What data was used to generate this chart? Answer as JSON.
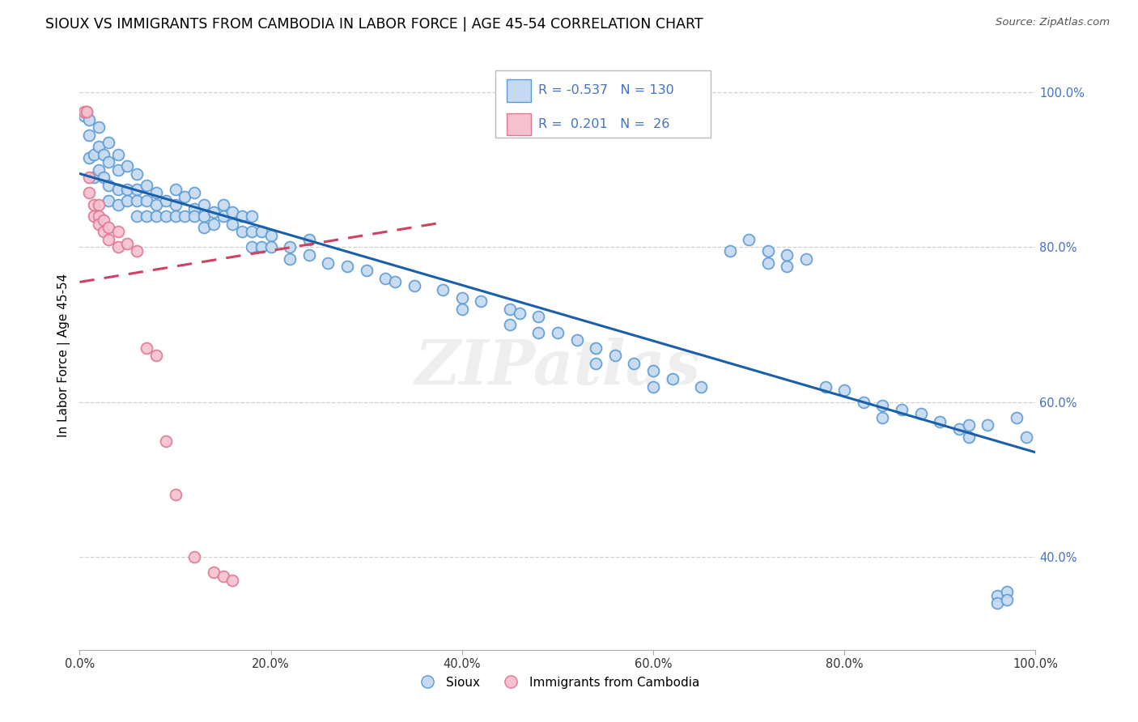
{
  "title": "SIOUX VS IMMIGRANTS FROM CAMBODIA IN LABOR FORCE | AGE 45-54 CORRELATION CHART",
  "source": "Source: ZipAtlas.com",
  "ylabel": "In Labor Force | Age 45-54",
  "xmin": 0.0,
  "xmax": 1.0,
  "ymin": 0.28,
  "ymax": 1.04,
  "xticks": [
    0.0,
    0.2,
    0.4,
    0.6,
    0.8,
    1.0
  ],
  "yticks": [
    0.4,
    0.6,
    0.8,
    1.0
  ],
  "xticklabels": [
    "0.0%",
    "20.0%",
    "40.0%",
    "60.0%",
    "80.0%",
    "100.0%"
  ],
  "yticklabels": [
    "40.0%",
    "60.0%",
    "80.0%",
    "100.0%"
  ],
  "blue_line_x0": 0.0,
  "blue_line_y0": 0.895,
  "blue_line_x1": 1.0,
  "blue_line_y1": 0.535,
  "pink_line_x0": 0.0,
  "pink_line_y0": 0.755,
  "pink_line_x1": 0.38,
  "pink_line_y1": 0.832,
  "watermark": "ZIPatlas",
  "background_color": "#ffffff",
  "grid_color": "#d0d0d0",
  "scatter_size": 100,
  "blue_scatter_color": "#c5d9f0",
  "blue_scatter_edge": "#5b9bd5",
  "pink_scatter_color": "#f5c0d0",
  "pink_scatter_edge": "#e07890",
  "blue_line_color": "#1a5faa",
  "pink_line_color": "#d04060",
  "tick_color": "#4472c4",
  "legend_R_blue": "-0.537",
  "legend_N_blue": "130",
  "legend_R_pink": "0.201",
  "legend_N_pink": "26",
  "blue_pts": [
    [
      0.005,
      0.97
    ],
    [
      0.007,
      0.975
    ],
    [
      0.01,
      0.965
    ],
    [
      0.01,
      0.945
    ],
    [
      0.01,
      0.915
    ],
    [
      0.015,
      0.92
    ],
    [
      0.015,
      0.89
    ],
    [
      0.02,
      0.955
    ],
    [
      0.02,
      0.93
    ],
    [
      0.02,
      0.9
    ],
    [
      0.025,
      0.89
    ],
    [
      0.025,
      0.92
    ],
    [
      0.03,
      0.935
    ],
    [
      0.03,
      0.91
    ],
    [
      0.03,
      0.88
    ],
    [
      0.03,
      0.86
    ],
    [
      0.04,
      0.92
    ],
    [
      0.04,
      0.9
    ],
    [
      0.04,
      0.875
    ],
    [
      0.04,
      0.855
    ],
    [
      0.05,
      0.905
    ],
    [
      0.05,
      0.875
    ],
    [
      0.05,
      0.86
    ],
    [
      0.06,
      0.895
    ],
    [
      0.06,
      0.875
    ],
    [
      0.06,
      0.86
    ],
    [
      0.06,
      0.84
    ],
    [
      0.07,
      0.88
    ],
    [
      0.07,
      0.86
    ],
    [
      0.07,
      0.84
    ],
    [
      0.08,
      0.87
    ],
    [
      0.08,
      0.855
    ],
    [
      0.08,
      0.84
    ],
    [
      0.09,
      0.86
    ],
    [
      0.09,
      0.84
    ],
    [
      0.1,
      0.875
    ],
    [
      0.1,
      0.855
    ],
    [
      0.1,
      0.84
    ],
    [
      0.11,
      0.865
    ],
    [
      0.11,
      0.84
    ],
    [
      0.12,
      0.87
    ],
    [
      0.12,
      0.85
    ],
    [
      0.12,
      0.84
    ],
    [
      0.13,
      0.855
    ],
    [
      0.13,
      0.84
    ],
    [
      0.13,
      0.825
    ],
    [
      0.14,
      0.845
    ],
    [
      0.14,
      0.83
    ],
    [
      0.15,
      0.855
    ],
    [
      0.15,
      0.84
    ],
    [
      0.16,
      0.845
    ],
    [
      0.16,
      0.83
    ],
    [
      0.17,
      0.84
    ],
    [
      0.17,
      0.82
    ],
    [
      0.18,
      0.84
    ],
    [
      0.18,
      0.82
    ],
    [
      0.18,
      0.8
    ],
    [
      0.19,
      0.82
    ],
    [
      0.19,
      0.8
    ],
    [
      0.2,
      0.815
    ],
    [
      0.2,
      0.8
    ],
    [
      0.22,
      0.8
    ],
    [
      0.22,
      0.785
    ],
    [
      0.24,
      0.81
    ],
    [
      0.24,
      0.79
    ],
    [
      0.26,
      0.78
    ],
    [
      0.28,
      0.775
    ],
    [
      0.3,
      0.77
    ],
    [
      0.32,
      0.76
    ],
    [
      0.33,
      0.755
    ],
    [
      0.35,
      0.75
    ],
    [
      0.38,
      0.745
    ],
    [
      0.4,
      0.735
    ],
    [
      0.4,
      0.72
    ],
    [
      0.42,
      0.73
    ],
    [
      0.45,
      0.72
    ],
    [
      0.45,
      0.7
    ],
    [
      0.46,
      0.715
    ],
    [
      0.48,
      0.71
    ],
    [
      0.48,
      0.69
    ],
    [
      0.5,
      0.69
    ],
    [
      0.52,
      0.68
    ],
    [
      0.54,
      0.67
    ],
    [
      0.54,
      0.65
    ],
    [
      0.56,
      0.66
    ],
    [
      0.58,
      0.65
    ],
    [
      0.6,
      0.64
    ],
    [
      0.6,
      0.62
    ],
    [
      0.62,
      0.63
    ],
    [
      0.65,
      0.62
    ],
    [
      0.68,
      0.795
    ],
    [
      0.7,
      0.81
    ],
    [
      0.72,
      0.795
    ],
    [
      0.72,
      0.78
    ],
    [
      0.74,
      0.79
    ],
    [
      0.74,
      0.775
    ],
    [
      0.76,
      0.785
    ],
    [
      0.78,
      0.62
    ],
    [
      0.8,
      0.615
    ],
    [
      0.82,
      0.6
    ],
    [
      0.84,
      0.595
    ],
    [
      0.84,
      0.58
    ],
    [
      0.86,
      0.59
    ],
    [
      0.88,
      0.585
    ],
    [
      0.9,
      0.575
    ],
    [
      0.92,
      0.565
    ],
    [
      0.93,
      0.57
    ],
    [
      0.93,
      0.555
    ],
    [
      0.95,
      0.57
    ],
    [
      0.96,
      0.35
    ],
    [
      0.96,
      0.34
    ],
    [
      0.97,
      0.355
    ],
    [
      0.97,
      0.345
    ],
    [
      0.98,
      0.58
    ],
    [
      0.99,
      0.555
    ]
  ],
  "pink_pts": [
    [
      0.005,
      0.975
    ],
    [
      0.007,
      0.975
    ],
    [
      0.01,
      0.89
    ],
    [
      0.01,
      0.87
    ],
    [
      0.015,
      0.855
    ],
    [
      0.015,
      0.84
    ],
    [
      0.02,
      0.855
    ],
    [
      0.02,
      0.84
    ],
    [
      0.02,
      0.83
    ],
    [
      0.025,
      0.835
    ],
    [
      0.025,
      0.82
    ],
    [
      0.03,
      0.825
    ],
    [
      0.03,
      0.81
    ],
    [
      0.04,
      0.82
    ],
    [
      0.04,
      0.8
    ],
    [
      0.05,
      0.805
    ],
    [
      0.06,
      0.795
    ],
    [
      0.07,
      0.67
    ],
    [
      0.08,
      0.66
    ],
    [
      0.09,
      0.55
    ],
    [
      0.1,
      0.48
    ],
    [
      0.12,
      0.4
    ],
    [
      0.14,
      0.38
    ],
    [
      0.15,
      0.375
    ],
    [
      0.16,
      0.37
    ]
  ]
}
